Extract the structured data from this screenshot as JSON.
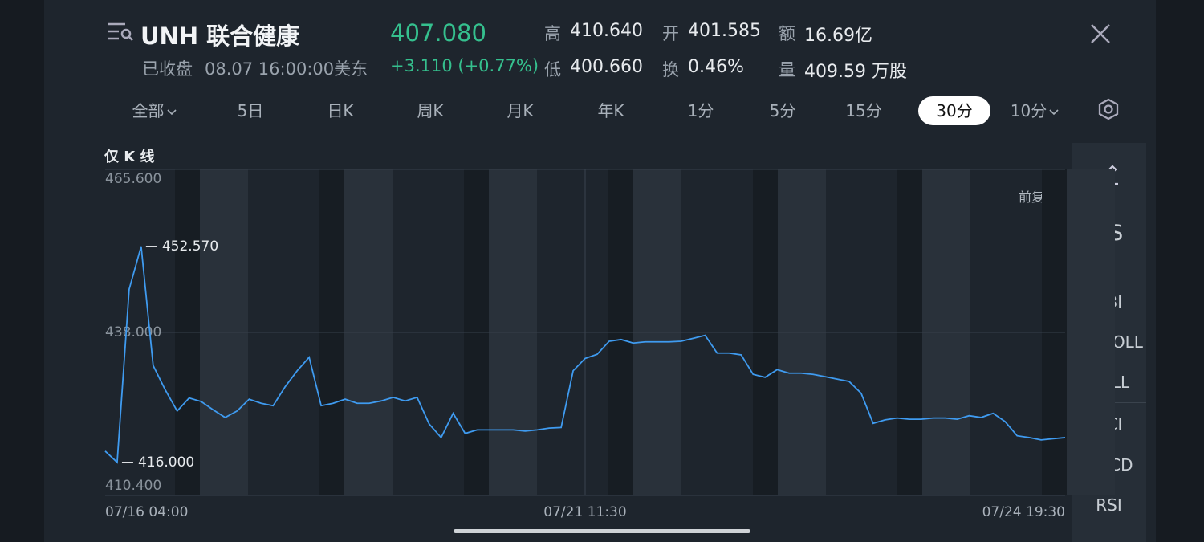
{
  "header": {
    "symbol_name": "UNH 联合健康",
    "price": "407.080",
    "status": "已收盘",
    "time": "08.07 16:00:00美东",
    "change": "+3.110 (+0.77%)",
    "stats": [
      {
        "label": "高",
        "value": "410.640"
      },
      {
        "label": "开",
        "value": "401.585"
      },
      {
        "label": "额",
        "value": "16.69亿"
      },
      {
        "label": "低",
        "value": "400.660"
      },
      {
        "label": "换",
        "value": "0.46%"
      },
      {
        "label": "量",
        "value": "409.59 万股"
      }
    ]
  },
  "tabs": [
    "全部",
    "5日",
    "日K",
    "周K",
    "月K",
    "年K",
    "1分",
    "5分",
    "15分",
    "30分",
    "10分"
  ],
  "active_tab": 9,
  "chart_mode": "仅 K 线",
  "adjust_label": "前复权",
  "side_panel": [
    "VS",
    "BBI",
    "BBIBOLL",
    "BOLL",
    "CCI",
    "MACD",
    "RSI"
  ],
  "chart_data": {
    "type": "line",
    "color": "#3f9bf0",
    "categories": [
      "07/16 04:00",
      null,
      null,
      null,
      null,
      null,
      null,
      null,
      null,
      null,
      null,
      null,
      null,
      null,
      null,
      null,
      null,
      null,
      null,
      null,
      null,
      null,
      null,
      null,
      null,
      null,
      null,
      null,
      null,
      null,
      null,
      null,
      null,
      null,
      null,
      null,
      null,
      null,
      null,
      null,
      "07/21 11:30",
      null,
      null,
      null,
      null,
      null,
      null,
      null,
      null,
      null,
      null,
      null,
      null,
      null,
      null,
      null,
      null,
      null,
      null,
      null,
      null,
      null,
      null,
      null,
      null,
      null,
      null,
      null,
      null,
      null,
      null,
      null,
      null,
      null,
      null,
      null,
      null,
      null,
      null,
      null,
      "07/24 19:30"
    ],
    "values": [
      417.9,
      416.0,
      445.3,
      452.57,
      432.4,
      428.3,
      424.7,
      426.9,
      426.3,
      424.9,
      423.6,
      424.7,
      426.7,
      426.0,
      425.6,
      428.8,
      431.5,
      433.8,
      425.6,
      426.0,
      426.7,
      426.0,
      426.0,
      426.4,
      427.0,
      426.4,
      427.0,
      422.5,
      420.2,
      424.3,
      420.9,
      421.5,
      421.5,
      421.5,
      421.5,
      421.3,
      421.5,
      421.8,
      421.9,
      431.5,
      433.6,
      434.3,
      436.5,
      436.8,
      436.2,
      436.4,
      436.4,
      436.4,
      436.5,
      437.0,
      437.5,
      434.5,
      434.5,
      434.2,
      430.9,
      430.4,
      431.7,
      431.1,
      431.1,
      430.9,
      430.5,
      430.1,
      429.7,
      427.7,
      422.6,
      423.2,
      423.5,
      423.3,
      423.3,
      423.5,
      423.5,
      423.3,
      423.9,
      423.6,
      424.3,
      422.9,
      420.5,
      420.2,
      419.8,
      420.0,
      420.2
    ],
    "ylim": [
      410.4,
      465.6
    ],
    "yticks": [
      {
        "value": 465.6,
        "label": "465.600"
      },
      {
        "value": 438,
        "label": "438.000"
      },
      {
        "value": 410.4,
        "label": "410.400"
      }
    ],
    "annotations": [
      {
        "index": 3,
        "value": 452.57,
        "label": "452.570"
      },
      {
        "index": 1,
        "value": 416,
        "label": "416.000"
      }
    ],
    "grid": true
  }
}
